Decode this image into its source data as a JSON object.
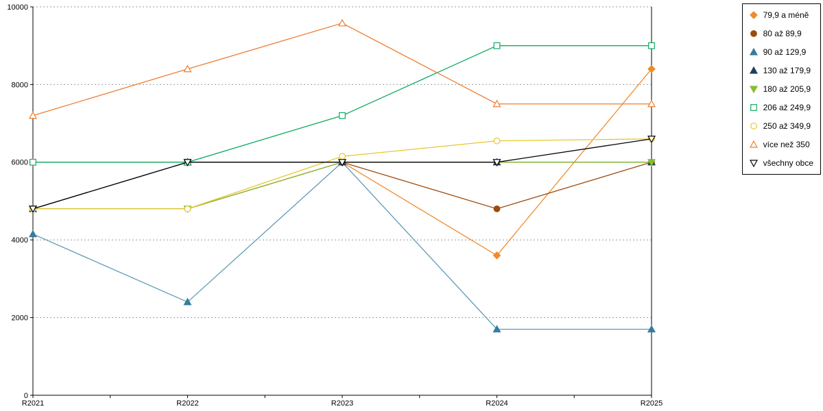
{
  "chart_data": {
    "type": "line",
    "title": "",
    "xlabel": "",
    "ylabel": "",
    "categories": [
      "R2021",
      "R2022",
      "R2023",
      "R2024",
      "R2025"
    ],
    "series": [
      {
        "name": "79,9 a méně",
        "marker": "diamond",
        "style": "filled",
        "color": "#ef8b2c",
        "values": [
          6000,
          6000,
          6000,
          3600,
          8400
        ]
      },
      {
        "name": "80 až 89,9",
        "marker": "circle",
        "style": "filled",
        "color": "#9c4b0f",
        "values": [
          4800,
          4800,
          6000,
          4800,
          6000
        ]
      },
      {
        "name": "90 až 129,9",
        "marker": "triangle-up",
        "style": "filled",
        "color": "#367d9e",
        "line_color": "#5e9ab5",
        "values": [
          4150,
          2400,
          6000,
          1700,
          1700
        ]
      },
      {
        "name": "130 až 179,9",
        "marker": "triangle-up",
        "style": "filled",
        "color": "#1f3f5f",
        "values": [
          4800,
          6000,
          6000,
          6000,
          6000
        ]
      },
      {
        "name": "180 až 205,9",
        "marker": "triangle-down",
        "style": "filled",
        "color": "#86bd33",
        "values": [
          4800,
          4800,
          6000,
          6000,
          6000
        ]
      },
      {
        "name": "206 až 249,9",
        "marker": "square",
        "style": "hollow",
        "color": "#0faa60",
        "values": [
          6000,
          6000,
          7200,
          9000,
          9000
        ]
      },
      {
        "name": "250 až 349,9",
        "marker": "circle",
        "style": "hollow",
        "color": "#e8c62a",
        "values": [
          4800,
          4800,
          6150,
          6550,
          6600
        ]
      },
      {
        "name": "více než 350",
        "marker": "triangle-up",
        "style": "hollow",
        "color": "#ed7d31",
        "values": [
          7200,
          8400,
          9580,
          7500,
          7500
        ]
      },
      {
        "name": "všechny obce",
        "marker": "triangle-down",
        "style": "hollow",
        "color": "#000000",
        "values": [
          4800,
          6000,
          6000,
          6000,
          6600
        ]
      }
    ],
    "y_axis": {
      "min": 0,
      "max": 10000,
      "tick_interval": 2000,
      "tick_labels": [
        "0",
        "2000",
        "4000",
        "6000",
        "8000",
        "10000"
      ]
    },
    "x_axis": {
      "tick_labels": [
        "R2021",
        "R2022",
        "R2023",
        "R2024",
        "R2025"
      ]
    },
    "grid": "horizontal-dotted",
    "gridline_color": "#9a9a9a",
    "legend_position": "top-right"
  }
}
